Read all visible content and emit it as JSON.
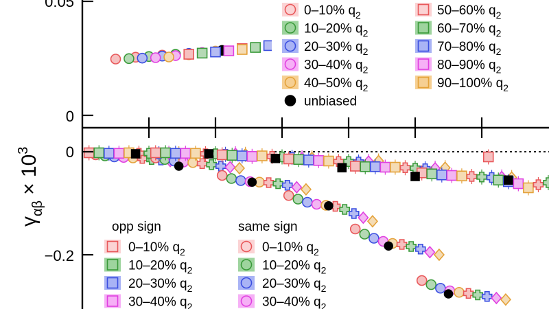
{
  "chart_data": [
    {
      "type": "scatter",
      "panel": "top",
      "title": "",
      "xlabel": "",
      "ylabel": "",
      "ylim": [
        -0.006,
        0.058
      ],
      "yticks": [
        {
          "value": 0,
          "label": "0"
        },
        {
          "value": 0.05,
          "label": "0.05"
        }
      ],
      "grid": false,
      "legend": {
        "placement": "top-right",
        "entries": [
          {
            "label": "0–10% q",
            "sub": "2",
            "color": "#e8585a",
            "fill": "#fbd3d4",
            "marker": "circle"
          },
          {
            "label": "10–20% q",
            "sub": "2",
            "color": "#3a9a3a",
            "fill": "#9ed49e",
            "marker": "circle"
          },
          {
            "label": "20–30% q",
            "sub": "2",
            "color": "#3b4fe0",
            "fill": "#a9b3f5",
            "marker": "circle"
          },
          {
            "label": "30–40% q",
            "sub": "2",
            "color": "#e040e0",
            "fill": "#f6b0f6",
            "marker": "circle"
          },
          {
            "label": "40–50% q",
            "sub": "2",
            "color": "#e4a23a",
            "fill": "#f6cf92",
            "marker": "circle"
          },
          {
            "label": "unbiased",
            "sub": "",
            "color": "#000000",
            "fill": "#000000",
            "marker": "circle"
          },
          {
            "label": "50–60% q",
            "sub": "2",
            "color": "#e8585a",
            "fill": "#fbd3d4",
            "marker": "square"
          },
          {
            "label": "60–70% q",
            "sub": "2",
            "color": "#3a9a3a",
            "fill": "#9ed49e",
            "marker": "square"
          },
          {
            "label": "70–80% q",
            "sub": "2",
            "color": "#3b4fe0",
            "fill": "#a9b3f5",
            "marker": "square"
          },
          {
            "label": "80–90% q",
            "sub": "2",
            "color": "#e040e0",
            "fill": "#f6b0f6",
            "marker": "square"
          },
          {
            "label": "90–100% q",
            "sub": "2",
            "color": "#e4a23a",
            "fill": "#f6cf92",
            "marker": "square"
          }
        ]
      },
      "series": [
        {
          "group": "0-10%",
          "color": "#e8585a",
          "marker": "circle",
          "points": [
            [
              0.5,
              0.0247
            ],
            [
              0.8,
              0.0255
            ],
            [
              1.2,
              0.0264
            ],
            [
              3.3,
              0.0392
            ],
            [
              3.9,
              0.046
            ],
            [
              4.4,
              0.0543
            ],
            [
              7.2,
              0.0529
            ]
          ]
        },
        {
          "group": "10-20%",
          "color": "#3a9a3a",
          "marker": "circle",
          "points": [
            [
              0.7,
              0.0249
            ],
            [
              1.0,
              0.0258
            ],
            [
              1.4,
              0.0268
            ],
            [
              3.5,
              0.0402
            ],
            [
              4.1,
              0.0474
            ],
            [
              4.6,
              0.0558
            ]
          ]
        },
        {
          "group": "20-30%",
          "color": "#3b4fe0",
          "marker": "circle",
          "points": [
            [
              0.9,
              0.0251
            ],
            [
              1.2,
              0.026
            ],
            [
              1.6,
              0.0272
            ],
            [
              3.7,
              0.0413
            ],
            [
              4.3,
              0.0488
            ]
          ]
        },
        {
          "group": "30-40%",
          "color": "#e040e0",
          "marker": "circle",
          "points": [
            [
              1.1,
              0.0253
            ],
            [
              1.4,
              0.0262
            ],
            [
              1.8,
              0.0276
            ],
            [
              3.9,
              0.0424
            ],
            [
              4.5,
              0.05
            ]
          ]
        },
        {
          "group": "40-50%",
          "color": "#e4a23a",
          "marker": "circle",
          "points": [
            [
              1.3,
              0.0256
            ],
            [
              1.6,
              0.0266
            ],
            [
              2.0,
              0.0282
            ],
            [
              4.1,
              0.0436
            ],
            [
              4.7,
              0.0513
            ]
          ]
        },
        {
          "group": "unbiased",
          "color": "#000000",
          "marker": "circle",
          "points": [
            [
              2.1,
              0.0285
            ],
            [
              5.6,
              0.0573
            ]
          ]
        },
        {
          "group": "50-60%",
          "color": "#e8585a",
          "marker": "square",
          "points": [
            [
              1.6,
              0.0268
            ],
            [
              2.4,
              0.0293
            ],
            [
              5.0,
              0.0537
            ]
          ]
        },
        {
          "group": "60-70%",
          "color": "#3a9a3a",
          "marker": "square",
          "points": [
            [
              1.8,
              0.0273
            ],
            [
              2.6,
              0.0298
            ],
            [
              5.2,
              0.0546
            ]
          ]
        },
        {
          "group": "70-80%",
          "color": "#3b4fe0",
          "marker": "square",
          "points": [
            [
              2.0,
              0.0278
            ],
            [
              2.8,
              0.0306
            ],
            [
              5.4,
              0.0556
            ]
          ]
        },
        {
          "group": "80-90%",
          "color": "#e040e0",
          "marker": "square",
          "points": [
            [
              2.2,
              0.0283
            ],
            [
              3.0,
              0.0314
            ],
            [
              5.6,
              0.0565
            ]
          ]
        },
        {
          "group": "90-100%",
          "color": "#e4a23a",
          "marker": "square",
          "points": [
            [
              2.4,
              0.0289
            ],
            [
              3.2,
              0.0324
            ],
            [
              5.8,
              0.0572
            ]
          ]
        }
      ]
    },
    {
      "type": "scatter",
      "panel": "bottom",
      "title": "",
      "xlabel": "",
      "ylabel": "γ_αβ × 10^3",
      "ylabel_parts": {
        "symbol": "γ",
        "sub": "αβ",
        "times": "× 10",
        "sup": "3"
      },
      "ylim": [
        -0.3,
        0.015
      ],
      "yticks": [
        {
          "value": 0,
          "label": "0"
        },
        {
          "value": -0.2,
          "label": "−0.2"
        }
      ],
      "reference_line": {
        "y": 0,
        "style": "dotted"
      },
      "grid": false,
      "legend": {
        "placement": "bottom-left",
        "columns": [
          {
            "header": "opp sign",
            "marker": "square",
            "entries": [
              {
                "label": "0–10% q",
                "sub": "2",
                "color": "#e8585a",
                "fill": "#fbd3d4"
              },
              {
                "label": "10–20% q",
                "sub": "2",
                "color": "#3a9a3a",
                "fill": "#9ed49e"
              },
              {
                "label": "20–30% q",
                "sub": "2",
                "color": "#3b4fe0",
                "fill": "#a9b3f5"
              },
              {
                "label": "30–40% q",
                "sub": "2",
                "color": "#e040e0",
                "fill": "#f6b0f6"
              }
            ]
          },
          {
            "header": "same sign",
            "marker": "circle",
            "entries": [
              {
                "label": "0–10% q",
                "sub": "2",
                "color": "#e8585a",
                "fill": "#fbd3d4"
              },
              {
                "label": "10–20% q",
                "sub": "2",
                "color": "#3a9a3a",
                "fill": "#9ed49e"
              },
              {
                "label": "20–30% q",
                "sub": "2",
                "color": "#3b4fe0",
                "fill": "#a9b3f5"
              },
              {
                "label": "30–40% q",
                "sub": "2",
                "color": "#e040e0",
                "fill": "#f6b0f6"
              }
            ]
          }
        ]
      },
      "marker_cycle": [
        "square",
        "square",
        "square",
        "square",
        "square",
        "cross",
        "cross",
        "cross",
        "diamond",
        "diamond"
      ],
      "color_cycle": [
        "#e8585a",
        "#3a9a3a",
        "#3b4fe0",
        "#e040e0",
        "#e4a23a",
        "#e8585a",
        "#3a9a3a",
        "#3b4fe0",
        "#e040e0",
        "#e4a23a"
      ],
      "opp_sign_groups": [
        {
          "x_start": 0.1,
          "step": 0.15,
          "values": [
            -0.002,
            -0.002,
            -0.003,
            -0.003,
            -0.002,
            -0.003,
            -0.003,
            -0.004,
            -0.003,
            -0.004
          ]
        },
        {
          "x_start": 1.1,
          "step": 0.15,
          "values": [
            -0.002,
            -0.002,
            -0.003,
            -0.003,
            -0.003,
            -0.004,
            -0.004,
            -0.005,
            -0.004,
            -0.005
          ]
        },
        {
          "x_start": 2.1,
          "step": 0.15,
          "values": [
            -0.006,
            -0.007,
            -0.008,
            -0.009,
            -0.008,
            -0.009,
            -0.01,
            -0.011,
            -0.012,
            -0.012
          ]
        },
        {
          "x_start": 3.1,
          "step": 0.15,
          "values": [
            -0.014,
            -0.015,
            -0.016,
            -0.017,
            -0.018,
            -0.019,
            -0.019,
            -0.02,
            -0.019,
            -0.018
          ]
        },
        {
          "x_start": 4.1,
          "step": 0.15,
          "values": [
            -0.028,
            -0.029,
            -0.029,
            -0.03,
            -0.03,
            -0.031,
            -0.032,
            -0.033,
            -0.032,
            -0.031
          ]
        },
        {
          "x_start": 5.1,
          "step": 0.15,
          "values": [
            -0.041,
            -0.043,
            -0.045,
            -0.046,
            -0.047,
            -0.048,
            -0.049,
            -0.05,
            -0.049,
            -0.05
          ]
        },
        {
          "x_start": 6.1,
          "step": 0.15,
          "values": [
            -0.01,
            -0.055,
            -0.058,
            -0.062,
            -0.07,
            -0.064,
            -0.06,
            -0.056,
            -0.052,
            -0.058
          ]
        }
      ],
      "same_sign_groups": [
        {
          "x_start": 0.2,
          "step": 0.14,
          "values": [
            -0.006,
            -0.008,
            -0.01,
            -0.011,
            -0.012,
            -0.013,
            -0.015,
            -0.016,
            -0.018,
            -0.02
          ]
        },
        {
          "x_start": 1.1,
          "step": 0.14,
          "values": [
            -0.012,
            -0.015,
            -0.018,
            -0.02,
            -0.021,
            -0.023,
            -0.025,
            -0.028,
            -0.03,
            -0.032
          ]
        },
        {
          "x_start": 2.1,
          "step": 0.14,
          "values": [
            -0.046,
            -0.052,
            -0.056,
            -0.058,
            -0.059,
            -0.06,
            -0.062,
            -0.065,
            -0.069,
            -0.073
          ]
        },
        {
          "x_start": 3.1,
          "step": 0.14,
          "values": [
            -0.085,
            -0.092,
            -0.098,
            -0.102,
            -0.104,
            -0.106,
            -0.112,
            -0.12,
            -0.128,
            -0.135
          ]
        },
        {
          "x_start": 4.1,
          "step": 0.14,
          "values": [
            -0.15,
            -0.16,
            -0.168,
            -0.174,
            -0.178,
            -0.18,
            -0.184,
            -0.189,
            -0.195,
            -0.2
          ]
        },
        {
          "x_start": 5.1,
          "step": 0.14,
          "values": [
            -0.25,
            -0.258,
            -0.265,
            -0.27,
            -0.273,
            -0.275,
            -0.278,
            -0.281,
            -0.284,
            -0.287
          ]
        }
      ],
      "unbiased": [
        [
          0.8,
          -0.004
        ],
        [
          1.9,
          -0.004
        ],
        [
          2.9,
          -0.013
        ],
        [
          3.9,
          -0.031
        ],
        [
          5.0,
          -0.048
        ],
        [
          6.4,
          -0.055
        ],
        [
          1.45,
          -0.028
        ],
        [
          2.55,
          -0.059
        ],
        [
          3.7,
          -0.105
        ],
        [
          4.6,
          -0.183
        ],
        [
          5.5,
          -0.276
        ]
      ]
    }
  ]
}
